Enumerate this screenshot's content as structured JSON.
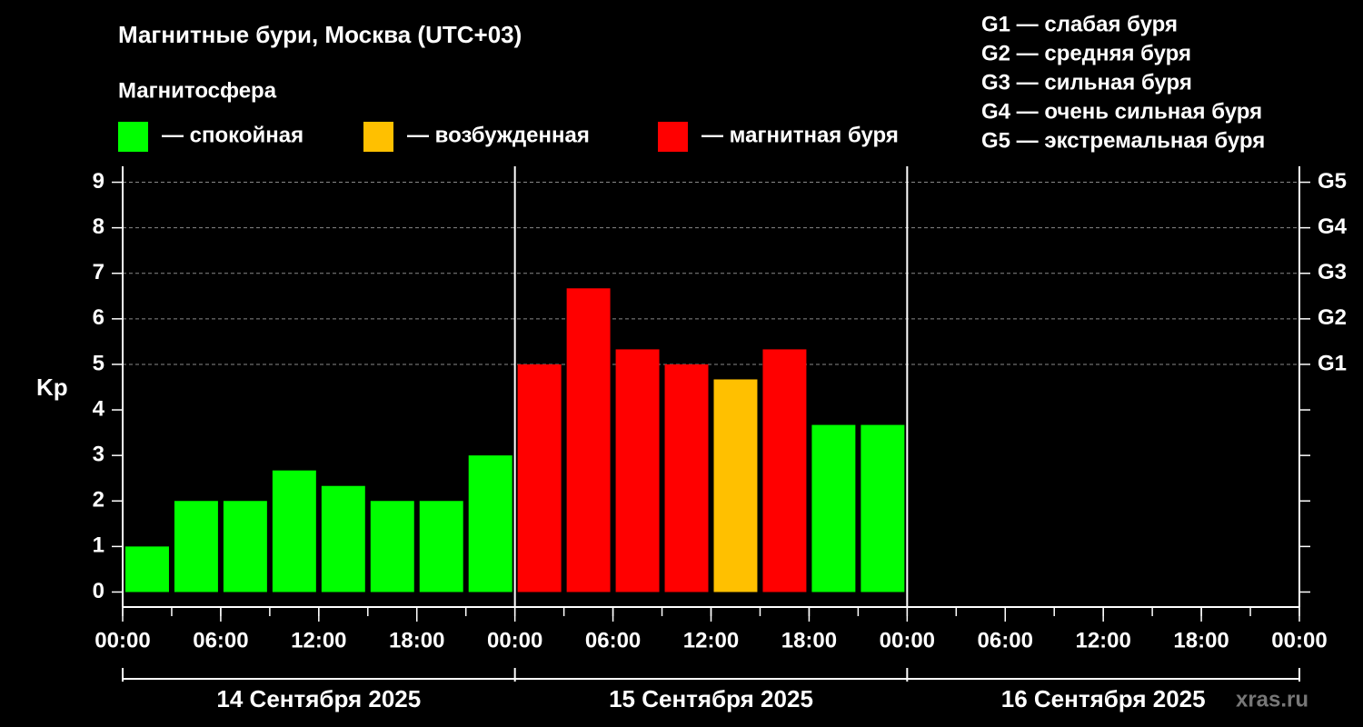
{
  "chart_data": {
    "type": "bar",
    "title": "Магнитные бури, Москва (UTC+03)",
    "subtitle": "Магнитосфера",
    "legend": [
      {
        "label": "— спокойная",
        "color": "#00ff00"
      },
      {
        "label": "— возбужденная",
        "color": "#ffc000"
      },
      {
        "label": "— магнитная буря",
        "color": "#ff0000"
      }
    ],
    "scale_legend": [
      "G1 — слабая буря",
      "G2 — средняя буря",
      "G3 — сильная буря",
      "G4 — очень сильная буря",
      "G5 — экстремальная буря"
    ],
    "y_label": "Kp",
    "watermark": "xras.ru",
    "x": [
      0,
      3,
      6,
      9,
      12,
      15,
      18,
      21,
      24,
      27,
      30,
      33,
      36,
      39,
      42,
      45
    ],
    "values": [
      1,
      2,
      2,
      2.67,
      2.33,
      2,
      2,
      3,
      5,
      6.67,
      5.33,
      5,
      4.67,
      5.33,
      3.67,
      3.67
    ],
    "colors": [
      "#00ff00",
      "#00ff00",
      "#00ff00",
      "#00ff00",
      "#00ff00",
      "#00ff00",
      "#00ff00",
      "#00ff00",
      "#ff0000",
      "#ff0000",
      "#ff0000",
      "#ff0000",
      "#ffc000",
      "#ff0000",
      "#00ff00",
      "#00ff00"
    ],
    "xlim": [
      0,
      72
    ],
    "xticks": [
      {
        "value": 0,
        "label": "00:00"
      },
      {
        "value": 6,
        "label": "06:00"
      },
      {
        "value": 12,
        "label": "12:00"
      },
      {
        "value": 18,
        "label": "18:00"
      },
      {
        "value": 24,
        "label": "00:00"
      },
      {
        "value": 30,
        "label": "06:00"
      },
      {
        "value": 36,
        "label": "12:00"
      },
      {
        "value": 42,
        "label": "18:00"
      },
      {
        "value": 48,
        "label": "00:00"
      },
      {
        "value": 54,
        "label": "06:00"
      },
      {
        "value": 60,
        "label": "12:00"
      },
      {
        "value": 66,
        "label": "18:00"
      },
      {
        "value": 72,
        "label": "00:00"
      }
    ],
    "days": [
      "14 Сентября 2025",
      "15 Сентября 2025",
      "16 Сентября 2025"
    ],
    "ylim": [
      -0.33,
      9.35
    ],
    "yticks": [
      0,
      1,
      2,
      3,
      4,
      5,
      6,
      7,
      8,
      9
    ],
    "y2lim": [
      -0.33,
      9.35
    ],
    "y2ticks": [
      {
        "value": 5,
        "label": "G1"
      },
      {
        "value": 6,
        "label": "G2"
      },
      {
        "value": 7,
        "label": "G3"
      },
      {
        "value": 8,
        "label": "G4"
      },
      {
        "value": 9,
        "label": "G5"
      }
    ],
    "grid": true
  }
}
